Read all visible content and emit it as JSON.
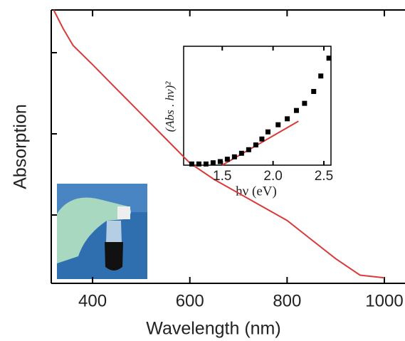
{
  "chart_data": [
    {
      "type": "line",
      "xlabel": "Wavelength (nm)",
      "ylabel": "Absorption",
      "x": [
        320,
        340,
        360,
        400,
        450,
        500,
        550,
        600,
        650,
        700,
        750,
        800,
        850,
        900,
        950,
        1000
      ],
      "series": [
        {
          "color": "#d93a3a",
          "values": [
            1.0,
            0.93,
            0.87,
            0.8,
            0.71,
            0.62,
            0.53,
            0.44,
            0.38,
            0.33,
            0.28,
            0.23,
            0.16,
            0.09,
            0.03,
            0.02
          ]
        }
      ],
      "xlim": [
        315,
        1000
      ],
      "ylim": [
        0,
        1
      ],
      "xticks": [
        400,
        600,
        800,
        1000
      ]
    },
    {
      "type": "scatter",
      "xlabel": "hν (eV)",
      "ylabel": "(Abs . hν)²",
      "series": [
        {
          "color": "#000000",
          "x": [
            1.2,
            1.27,
            1.34,
            1.41,
            1.48,
            1.55,
            1.62,
            1.69,
            1.76,
            1.83,
            1.89,
            1.95,
            2.05,
            2.14,
            2.23,
            2.31,
            2.4,
            2.47,
            2.55
          ],
          "values": [
            0.01,
            0.01,
            0.01,
            0.02,
            0.03,
            0.05,
            0.07,
            0.1,
            0.13,
            0.17,
            0.22,
            0.28,
            0.34,
            0.39,
            0.46,
            0.52,
            0.62,
            0.75,
            0.9
          ]
        }
      ],
      "fit": {
        "color": "#d93a3a",
        "x": [
          1.5,
          2.25
        ],
        "values": [
          0,
          0.37
        ]
      },
      "xlim": [
        1.12,
        2.57
      ],
      "ylim": [
        0,
        1
      ],
      "xticks": [
        1.5,
        {
          "value": 2,
          "label": "2.0"
        },
        2.5
      ]
    }
  ]
}
